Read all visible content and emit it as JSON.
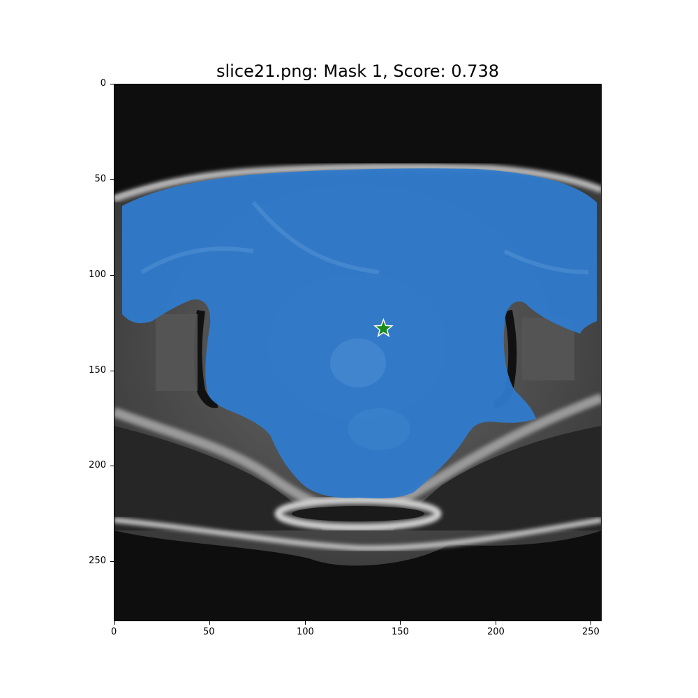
{
  "title": "slice21.png: Mask 1, Score: 0.738",
  "image": {
    "x_ticks": [
      "0",
      "50",
      "100",
      "150",
      "200",
      "250"
    ],
    "y_ticks": [
      "0",
      "50",
      "100",
      "150",
      "200",
      "250"
    ],
    "x_range": [
      0,
      255
    ],
    "y_range": [
      0,
      281
    ],
    "mask_color": "#2f7bcc",
    "marker_color": "#1a8a1a",
    "marker": {
      "x": 141,
      "y": 128,
      "shape": "star"
    }
  }
}
